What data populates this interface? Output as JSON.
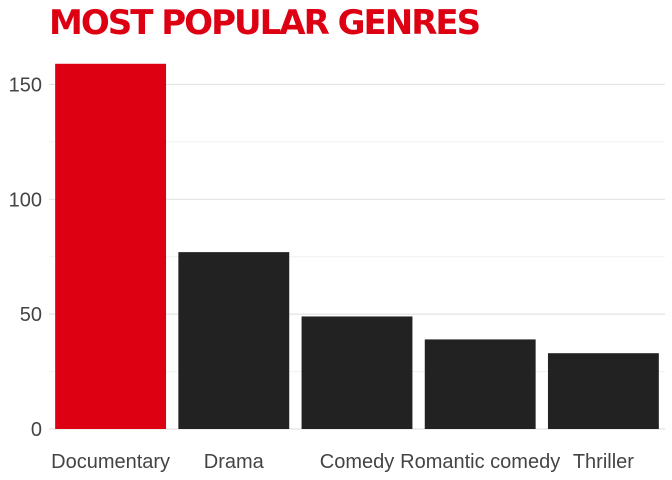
{
  "chart_data": {
    "type": "bar",
    "title": "MOST POPULAR GENRES",
    "xlabel": "",
    "ylabel": "",
    "categories": [
      "Documentary",
      "Drama",
      "Comedy",
      "Romantic comedy",
      "Thriller"
    ],
    "values": [
      159,
      77,
      49,
      39,
      33
    ],
    "highlight_index": 0,
    "ylim": [
      0,
      165
    ],
    "yticks": [
      0,
      50,
      100,
      150
    ],
    "grid": true,
    "legend": "none",
    "colors": {
      "highlight": "#dc0012",
      "bar": "#222222",
      "title": "#dc0012",
      "grid": "#e4e4e4"
    }
  }
}
